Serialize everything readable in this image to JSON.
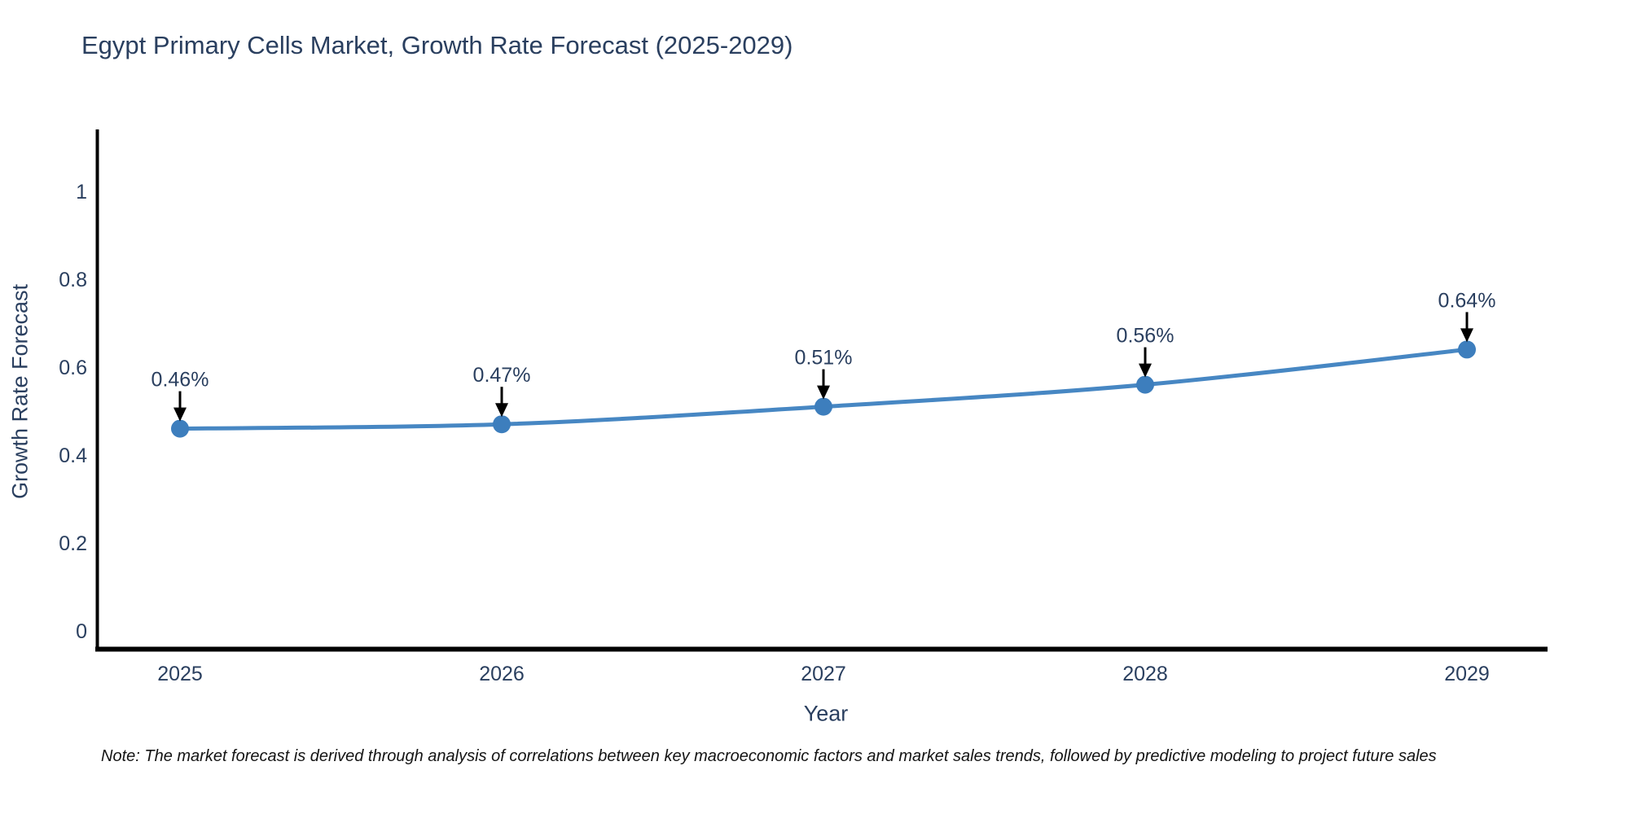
{
  "title": "Egypt Primary Cells Market, Growth Rate Forecast (2025-2029)",
  "note": "Note: The market forecast is derived through analysis of correlations between key macroeconomic factors and market sales trends, followed by predictive modeling to project future sales",
  "colors": {
    "text": "#2a3f5f",
    "axis": "#000000",
    "line": "#4787c3",
    "marker": "#3d7ebd",
    "arrow": "#000000",
    "note": "#141414",
    "background": "#ffffff"
  },
  "chart_data": {
    "type": "line",
    "title": "Egypt Primary Cells Market, Growth Rate Forecast (2025-2029)",
    "x": [
      "2025",
      "2026",
      "2027",
      "2028",
      "2029"
    ],
    "y": [
      0.46,
      0.47,
      0.51,
      0.56,
      0.64
    ],
    "point_labels": [
      "0.46%",
      "0.47%",
      "0.51%",
      "0.56%",
      "0.64%"
    ],
    "xlabel": "Year",
    "ylabel": "Growth Rate Forecast",
    "yticks": [
      0,
      0.2,
      0.4,
      0.6,
      0.8,
      1
    ],
    "ytick_labels": [
      "0",
      "0.2",
      "0.4",
      "0.6",
      "0.8",
      "1"
    ],
    "ylim": [
      0,
      1.15
    ],
    "grid": false,
    "legend": false,
    "marker": "circle",
    "annotation_style": "arrow-down-to-point"
  }
}
